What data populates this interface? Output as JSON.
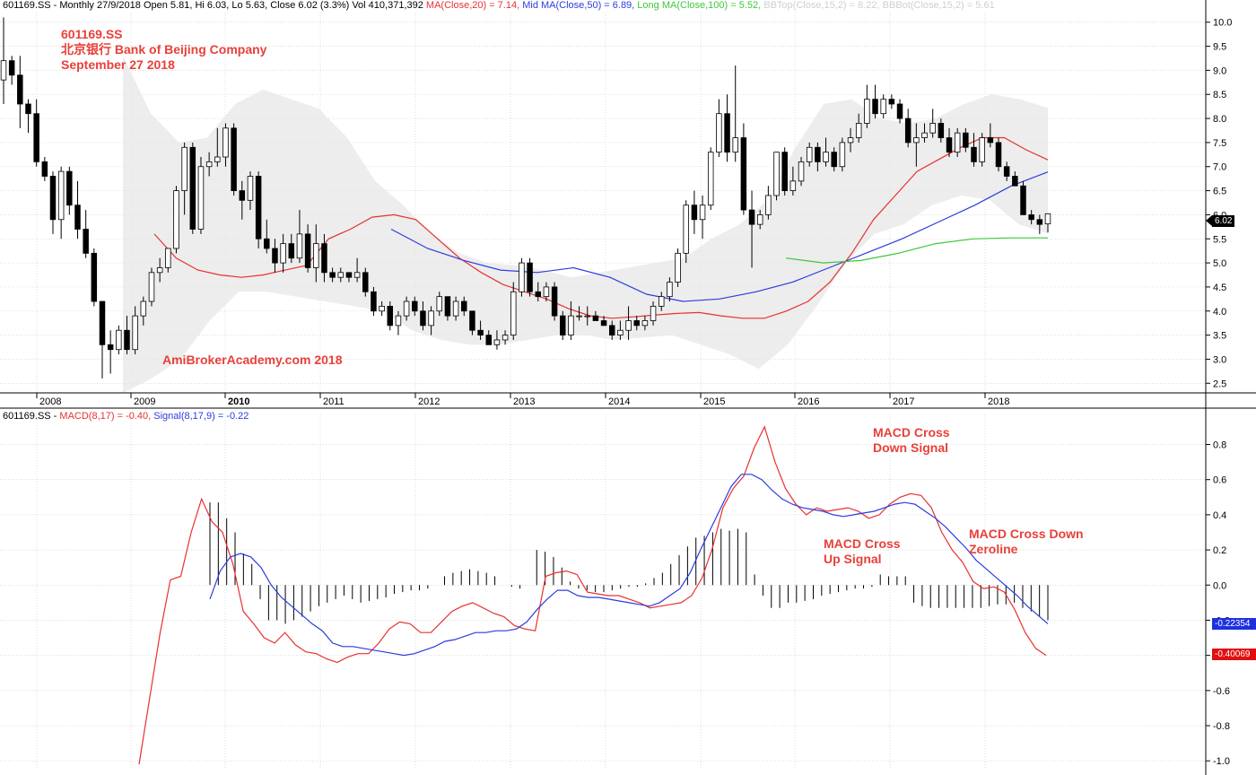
{
  "header_price": {
    "prefix": "601169.SS - Monthly 27/9/2018 Open 5.81, Hi 6.03, Lo 5.63, Close 6.02 (3.3%) Vol 410,371,392 ",
    "ma20": "MA(Close,20) = 7.14,",
    "ma50": " Mid MA(Close,50) = 6.89,",
    "ma100": " Long MA(Close,100) = 5.52,",
    "bbtop": " BBTop(Close,15,2) = 8.22,",
    "bbbot": " BBBot(Close,15,2) = 5.61"
  },
  "header_macd": {
    "prefix": "601169.SS - ",
    "macd": "MACD(8,17) = -0.40,",
    "signal": " Signal(8,17,9) = -0.22"
  },
  "title": {
    "line1": "601169.SS",
    "line2": "北京银行  Bank of Beijing Company",
    "line3": "September 27 2018"
  },
  "watermark": "AmiBrokerAcademy.com  2018",
  "annotations": {
    "cross_down_signal": [
      "MACD Cross",
      "Down Signal"
    ],
    "cross_up_signal": [
      "MACD Cross",
      "Up Signal"
    ],
    "cross_down_zeroline": [
      "MACD Cross Down",
      "Zeroline"
    ]
  },
  "last_price_tag": "6.02",
  "macd_tag": "-0.40069",
  "signal_tag": "-0.22354",
  "colors": {
    "ma20": "#e83030",
    "ma50": "#2c3cdd",
    "ma100": "#3cc83c",
    "bb_band": "#e6e6e6",
    "macd": "#e83030",
    "signal": "#2c3cdd",
    "annotation": "#e8403a",
    "grid": "#c9c9c9"
  },
  "chart_data": [
    {
      "type": "candlestick",
      "ylim": [
        2.3,
        10.2
      ],
      "y_ticks": [
        2.5,
        3.0,
        3.5,
        4.0,
        4.5,
        5.0,
        5.5,
        6.0,
        6.5,
        7.0,
        7.5,
        8.0,
        8.5,
        9.0,
        9.5,
        10.0
      ],
      "x_labels": [
        "2008",
        "2009",
        "2010",
        "2011",
        "2012",
        "2013",
        "2014",
        "2015",
        "2016",
        "2017",
        "2018"
      ],
      "series_ohlc": [
        [
          8.8,
          10.1,
          8.3,
          9.2
        ],
        [
          9.2,
          9.3,
          8.7,
          8.9
        ],
        [
          8.9,
          9.3,
          7.8,
          8.3
        ],
        [
          8.3,
          8.4,
          7.7,
          8.1
        ],
        [
          8.1,
          8.4,
          7.0,
          7.1
        ],
        [
          7.1,
          7.2,
          6.7,
          6.8
        ],
        [
          6.8,
          6.9,
          5.6,
          5.9
        ],
        [
          5.9,
          7.0,
          5.5,
          6.9
        ],
        [
          6.9,
          7.0,
          6.0,
          6.2
        ],
        [
          6.2,
          6.7,
          5.5,
          5.7
        ],
        [
          5.7,
          6.1,
          5.1,
          5.2
        ],
        [
          5.2,
          5.3,
          4.1,
          4.2
        ],
        [
          4.2,
          4.2,
          2.6,
          3.3
        ],
        [
          3.3,
          3.6,
          2.7,
          3.2
        ],
        [
          3.2,
          3.7,
          3.1,
          3.6
        ],
        [
          3.6,
          3.9,
          3.1,
          3.2
        ],
        [
          3.2,
          4.1,
          3.1,
          3.9
        ],
        [
          3.9,
          4.3,
          3.7,
          4.2
        ],
        [
          4.2,
          4.9,
          4.1,
          4.8
        ],
        [
          4.8,
          5.1,
          4.6,
          4.9
        ],
        [
          4.9,
          5.3,
          4.8,
          5.3
        ],
        [
          5.3,
          6.6,
          5.2,
          6.5
        ],
        [
          6.5,
          7.5,
          6.0,
          7.4
        ],
        [
          7.4,
          7.5,
          5.6,
          5.7
        ],
        [
          5.7,
          7.2,
          5.6,
          7.0
        ],
        [
          7.0,
          7.3,
          6.8,
          7.1
        ],
        [
          7.1,
          7.8,
          7.0,
          7.2
        ],
        [
          7.2,
          7.9,
          7.0,
          7.8
        ],
        [
          7.8,
          7.9,
          6.4,
          6.5
        ],
        [
          6.5,
          6.7,
          5.9,
          6.3
        ],
        [
          6.3,
          6.9,
          6.1,
          6.8
        ],
        [
          6.8,
          6.9,
          5.3,
          5.5
        ],
        [
          5.5,
          5.9,
          5.2,
          5.3
        ],
        [
          5.3,
          5.5,
          4.8,
          5.0
        ],
        [
          5.0,
          5.6,
          4.8,
          5.4
        ],
        [
          5.4,
          5.6,
          5.0,
          5.1
        ],
        [
          5.1,
          6.1,
          5.0,
          5.6
        ],
        [
          5.6,
          5.8,
          4.8,
          4.9
        ],
        [
          4.9,
          5.8,
          4.6,
          5.4
        ],
        [
          5.4,
          5.6,
          4.6,
          4.8
        ],
        [
          4.8,
          4.9,
          4.6,
          4.7
        ],
        [
          4.7,
          4.9,
          4.6,
          4.8
        ],
        [
          4.8,
          4.8,
          4.6,
          4.7
        ],
        [
          4.7,
          5.1,
          4.6,
          4.8
        ],
        [
          4.8,
          4.9,
          4.3,
          4.4
        ],
        [
          4.4,
          4.5,
          3.9,
          4.0
        ],
        [
          4.0,
          4.2,
          3.9,
          4.1
        ],
        [
          4.1,
          4.2,
          3.6,
          3.7
        ],
        [
          3.7,
          4.0,
          3.5,
          3.9
        ],
        [
          3.9,
          4.3,
          3.8,
          4.2
        ],
        [
          4.2,
          4.3,
          3.9,
          4.0
        ],
        [
          4.0,
          4.2,
          3.6,
          3.7
        ],
        [
          3.7,
          4.1,
          3.5,
          4.0
        ],
        [
          4.0,
          4.4,
          3.9,
          4.3
        ],
        [
          4.3,
          4.3,
          3.8,
          3.9
        ],
        [
          3.9,
          4.3,
          3.8,
          4.2
        ],
        [
          4.2,
          4.3,
          3.9,
          4.0
        ],
        [
          4.0,
          4.0,
          3.5,
          3.6
        ],
        [
          3.6,
          3.8,
          3.4,
          3.5
        ],
        [
          3.5,
          3.6,
          3.3,
          3.3
        ],
        [
          3.3,
          3.6,
          3.2,
          3.4
        ],
        [
          3.4,
          3.6,
          3.3,
          3.5
        ],
        [
          3.5,
          4.6,
          3.4,
          4.4
        ],
        [
          4.4,
          5.1,
          4.3,
          5.0
        ],
        [
          5.0,
          5.1,
          4.3,
          4.4
        ],
        [
          4.4,
          4.6,
          4.2,
          4.3
        ],
        [
          4.3,
          4.6,
          4.2,
          4.5
        ],
        [
          4.5,
          4.6,
          3.8,
          3.9
        ],
        [
          3.9,
          4.0,
          3.4,
          3.5
        ],
        [
          3.5,
          4.2,
          3.4,
          3.9
        ],
        [
          3.9,
          4.1,
          3.8,
          3.9
        ],
        [
          3.9,
          4.1,
          3.7,
          3.9
        ],
        [
          3.9,
          4.0,
          3.8,
          3.8
        ],
        [
          3.8,
          3.9,
          3.7,
          3.7
        ],
        [
          3.7,
          3.8,
          3.4,
          3.5
        ],
        [
          3.5,
          3.8,
          3.4,
          3.6
        ],
        [
          3.6,
          4.1,
          3.4,
          3.8
        ],
        [
          3.8,
          3.9,
          3.6,
          3.7
        ],
        [
          3.7,
          3.9,
          3.6,
          3.8
        ],
        [
          3.8,
          4.2,
          3.7,
          4.1
        ],
        [
          4.1,
          4.4,
          4.0,
          4.3
        ],
        [
          4.3,
          4.7,
          4.2,
          4.6
        ],
        [
          4.6,
          5.3,
          4.5,
          5.2
        ],
        [
          5.2,
          6.3,
          5.0,
          6.2
        ],
        [
          6.2,
          6.5,
          5.6,
          5.9
        ],
        [
          5.9,
          6.4,
          5.5,
          6.2
        ],
        [
          6.2,
          7.4,
          6.1,
          7.3
        ],
        [
          7.3,
          8.4,
          7.2,
          8.1
        ],
        [
          8.1,
          8.5,
          7.1,
          7.3
        ],
        [
          7.3,
          9.1,
          7.1,
          7.6
        ],
        [
          7.6,
          7.9,
          6.0,
          6.1
        ],
        [
          6.1,
          6.5,
          4.9,
          5.8
        ],
        [
          5.8,
          6.1,
          5.7,
          6.0
        ],
        [
          6.0,
          6.6,
          5.9,
          6.4
        ],
        [
          6.4,
          7.3,
          6.3,
          7.3
        ],
        [
          7.3,
          7.4,
          6.4,
          6.5
        ],
        [
          6.5,
          7.0,
          6.4,
          6.7
        ],
        [
          6.7,
          7.2,
          6.6,
          7.1
        ],
        [
          7.1,
          7.5,
          7.0,
          7.4
        ],
        [
          7.4,
          7.5,
          6.9,
          7.1
        ],
        [
          7.1,
          7.6,
          7.0,
          7.3
        ],
        [
          7.3,
          7.4,
          6.9,
          7.0
        ],
        [
          7.0,
          7.6,
          6.9,
          7.5
        ],
        [
          7.5,
          7.8,
          7.3,
          7.6
        ],
        [
          7.6,
          8.1,
          7.5,
          7.9
        ],
        [
          7.9,
          8.7,
          7.8,
          8.4
        ],
        [
          8.4,
          8.7,
          8.0,
          8.1
        ],
        [
          8.1,
          8.5,
          8.0,
          8.4
        ],
        [
          8.4,
          8.5,
          8.2,
          8.3
        ],
        [
          8.3,
          8.4,
          7.9,
          8.0
        ],
        [
          8.0,
          8.2,
          7.4,
          7.5
        ],
        [
          7.5,
          7.9,
          7.0,
          7.6
        ],
        [
          7.6,
          7.9,
          7.5,
          7.7
        ],
        [
          7.7,
          8.2,
          7.6,
          7.9
        ],
        [
          7.9,
          8.0,
          7.5,
          7.6
        ],
        [
          7.6,
          7.8,
          7.2,
          7.3
        ],
        [
          7.3,
          7.8,
          7.2,
          7.7
        ],
        [
          7.7,
          7.8,
          7.3,
          7.4
        ],
        [
          7.4,
          7.7,
          7.0,
          7.1
        ],
        [
          7.1,
          7.7,
          7.0,
          7.6
        ],
        [
          7.6,
          7.9,
          7.4,
          7.5
        ],
        [
          7.5,
          7.6,
          6.9,
          7.0
        ],
        [
          7.0,
          7.1,
          6.7,
          6.8
        ],
        [
          6.8,
          6.9,
          6.6,
          6.6
        ],
        [
          6.6,
          6.7,
          6.0,
          6.0
        ],
        [
          6.0,
          6.1,
          5.8,
          5.9
        ],
        [
          5.9,
          6.0,
          5.6,
          5.8
        ],
        [
          5.81,
          6.03,
          5.63,
          6.02
        ]
      ],
      "ma20": [
        5.6,
        5.1,
        4.85,
        4.75,
        4.7,
        4.75,
        4.85,
        4.95,
        5.5,
        5.7,
        5.95,
        6.0,
        5.9,
        5.5,
        5.1,
        4.8,
        4.55,
        4.4,
        4.25,
        4.05,
        3.9,
        3.85,
        3.88,
        3.92,
        3.95,
        3.97,
        3.9,
        3.85,
        3.85,
        4.0,
        4.2,
        4.6,
        5.2,
        5.9,
        6.4,
        6.9,
        7.15,
        7.4,
        7.6,
        7.6,
        7.35,
        7.14
      ],
      "ma50": [
        5.7,
        5.3,
        5.05,
        4.85,
        4.8,
        4.9,
        4.7,
        4.35,
        4.2,
        4.25,
        4.4,
        4.6,
        4.9,
        5.2,
        5.5,
        5.85,
        6.2,
        6.6,
        6.89
      ],
      "ma100": [
        5.1,
        5.0,
        5.05,
        5.2,
        5.4,
        5.5,
        5.52,
        5.52
      ],
      "bb_top": [
        9.3,
        8.1,
        7.5,
        7.6,
        8.3,
        8.6,
        8.4,
        8.2,
        7.6,
        6.7,
        6.2,
        5.6,
        5.2,
        5.0,
        4.95,
        4.85,
        4.7,
        4.8,
        4.9,
        5.0,
        5.1,
        5.5,
        5.8,
        6.3,
        7.4,
        8.3,
        8.4,
        8.0,
        7.9,
        8.0,
        8.3,
        8.5,
        8.4,
        8.22
      ],
      "bb_bot": [
        2.3,
        2.6,
        3.0,
        3.8,
        4.4,
        4.4,
        4.3,
        4.2,
        4.1,
        4.0,
        3.6,
        3.4,
        3.3,
        3.3,
        3.4,
        3.5,
        3.5,
        3.4,
        3.45,
        3.5,
        3.3,
        3.1,
        2.8,
        3.3,
        4.1,
        5.0,
        5.6,
        5.8,
        6.2,
        6.4,
        6.3,
        5.8,
        5.61
      ]
    },
    {
      "type": "line",
      "ylim": [
        -1.05,
        0.92
      ],
      "y_ticks": [
        -1.0,
        -0.8,
        -0.6,
        -0.4,
        -0.2,
        0.0,
        0.2,
        0.4,
        0.6,
        0.8
      ],
      "series": [
        {
          "name": "MACD(8,17)",
          "values": [
            -1.02,
            -0.65,
            -0.28,
            0.03,
            0.05,
            0.3,
            0.49,
            0.36,
            0.3,
            0.12,
            -0.15,
            -0.22,
            -0.3,
            -0.33,
            -0.27,
            -0.34,
            -0.38,
            -0.39,
            -0.42,
            -0.44,
            -0.41,
            -0.39,
            -0.39,
            -0.33,
            -0.25,
            -0.21,
            -0.22,
            -0.27,
            -0.27,
            -0.21,
            -0.15,
            -0.12,
            -0.1,
            -0.13,
            -0.16,
            -0.18,
            -0.23,
            -0.25,
            -0.26,
            0.05,
            0.07,
            0.08,
            0.06,
            -0.04,
            -0.05,
            -0.06,
            -0.06,
            -0.08,
            -0.1,
            -0.13,
            -0.12,
            -0.11,
            -0.1,
            -0.06,
            0.04,
            0.21,
            0.44,
            0.55,
            0.62,
            0.78,
            0.9,
            0.7,
            0.55,
            0.46,
            0.4,
            0.44,
            0.42,
            0.43,
            0.44,
            0.42,
            0.38,
            0.4,
            0.46,
            0.5,
            0.52,
            0.51,
            0.44,
            0.3,
            0.2,
            0.13,
            0.02,
            -0.02,
            -0.01,
            -0.04,
            -0.14,
            -0.27,
            -0.36,
            -0.4
          ]
        },
        {
          "name": "Signal(8,17,9)",
          "values": [
            -0.08,
            0.08,
            0.16,
            0.18,
            0.16,
            0.1,
            0.0,
            -0.07,
            -0.12,
            -0.17,
            -0.22,
            -0.26,
            -0.33,
            -0.35,
            -0.35,
            -0.36,
            -0.37,
            -0.38,
            -0.39,
            -0.4,
            -0.39,
            -0.37,
            -0.35,
            -0.32,
            -0.31,
            -0.29,
            -0.27,
            -0.27,
            -0.26,
            -0.26,
            -0.25,
            -0.21,
            -0.14,
            -0.08,
            -0.03,
            -0.03,
            -0.06,
            -0.07,
            -0.07,
            -0.08,
            -0.09,
            -0.1,
            -0.11,
            -0.12,
            -0.1,
            -0.06,
            -0.02,
            0.07,
            0.2,
            0.32,
            0.44,
            0.56,
            0.63,
            0.63,
            0.6,
            0.54,
            0.49,
            0.46,
            0.44,
            0.43,
            0.42,
            0.4,
            0.39,
            0.4,
            0.41,
            0.42,
            0.44,
            0.46,
            0.47,
            0.46,
            0.42,
            0.38,
            0.33,
            0.27,
            0.21,
            0.14,
            0.09,
            0.04,
            -0.01,
            -0.06,
            -0.12,
            -0.17,
            -0.22
          ]
        },
        {
          "name": "Histogram",
          "values": [
            0.47,
            0.47,
            0.38,
            0.3,
            0.18,
            0.12,
            -0.08,
            -0.2,
            -0.2,
            -0.22,
            -0.2,
            -0.18,
            -0.15,
            -0.12,
            -0.1,
            -0.08,
            -0.06,
            -0.08,
            -0.1,
            -0.09,
            -0.08,
            -0.07,
            -0.05,
            -0.04,
            -0.03,
            -0.03,
            -0.02,
            0.0,
            0.05,
            0.07,
            0.08,
            0.09,
            0.08,
            0.07,
            0.05,
            0.0,
            -0.01,
            -0.02,
            0.0,
            0.2,
            0.19,
            0.16,
            0.1,
            0.02,
            -0.02,
            -0.03,
            -0.04,
            -0.04,
            -0.03,
            -0.02,
            -0.01,
            -0.01,
            0.01,
            0.04,
            0.07,
            0.12,
            0.17,
            0.22,
            0.27,
            0.28,
            0.3,
            0.32,
            0.31,
            0.32,
            0.3,
            0.06,
            -0.06,
            -0.13,
            -0.13,
            -0.1,
            -0.1,
            -0.09,
            -0.08,
            -0.06,
            -0.05,
            -0.04,
            -0.03,
            -0.02,
            -0.02,
            -0.01,
            0.06,
            0.05,
            0.05,
            0.05,
            -0.1,
            -0.12,
            -0.13,
            -0.13,
            -0.13,
            -0.13,
            -0.13,
            -0.13,
            -0.13,
            -0.12,
            -0.11,
            -0.11,
            -0.1,
            -0.13,
            -0.15,
            -0.18,
            -0.2
          ]
        }
      ]
    }
  ]
}
